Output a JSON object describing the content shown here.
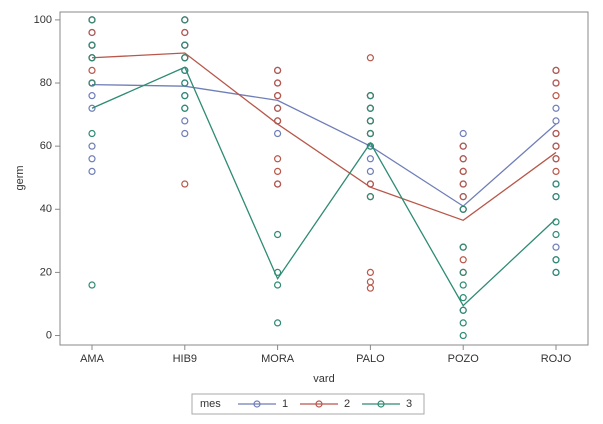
{
  "chart_data": {
    "type": "scatter-means",
    "x_label": "vard",
    "y_label": "germ",
    "categories": [
      "AMA",
      "HIB9",
      "MORA",
      "PALO",
      "POZO",
      "ROJO"
    ],
    "ylim": [
      -3,
      102.5
    ],
    "yticks": [
      0,
      20,
      40,
      60,
      80,
      100
    ],
    "legend_title": "mes",
    "legend": "bottom",
    "series": [
      {
        "name": "1",
        "color": "#6f7eb8",
        "values": [
          79.5,
          79,
          74.5,
          60,
          41,
          67
        ],
        "points": [
          [
            100,
            96,
            92,
            88,
            80,
            76,
            72,
            60,
            56,
            52
          ],
          [
            100,
            96,
            92,
            88,
            84,
            80,
            76,
            72,
            68,
            64
          ],
          [
            84,
            80,
            76,
            72,
            68,
            64,
            48
          ],
          [
            76,
            72,
            68,
            64,
            60,
            56,
            52,
            48
          ],
          [
            64,
            60,
            56,
            52,
            48,
            44,
            40,
            8
          ],
          [
            84,
            80,
            72,
            68,
            64,
            60,
            56,
            48,
            44,
            28,
            24,
            20
          ]
        ]
      },
      {
        "name": "2",
        "color": "#b8574a",
        "values": [
          88,
          89.5,
          67,
          47,
          36.5,
          58
        ],
        "points": [
          [
            100,
            96,
            92,
            88,
            84,
            80
          ],
          [
            100,
            96,
            92,
            88,
            48
          ],
          [
            84,
            80,
            76,
            72,
            68,
            56,
            52,
            48
          ],
          [
            88,
            76,
            72,
            68,
            64,
            48,
            44,
            20,
            17,
            15
          ],
          [
            60,
            56,
            52,
            48,
            44,
            40,
            28,
            24,
            20
          ],
          [
            84,
            80,
            76,
            64,
            60,
            56,
            52
          ]
        ]
      },
      {
        "name": "3",
        "color": "#2e8b74",
        "values": [
          72,
          85,
          18,
          61,
          9.5,
          37
        ],
        "points": [
          [
            100,
            92,
            88,
            80,
            64,
            16
          ],
          [
            100,
            92,
            88,
            84,
            80,
            76,
            72
          ],
          [
            32,
            20,
            16,
            4
          ],
          [
            76,
            72,
            68,
            64,
            60,
            44
          ],
          [
            40,
            28,
            20,
            16,
            12,
            8,
            4,
            0
          ],
          [
            48,
            44,
            36,
            32,
            24,
            20
          ]
        ]
      }
    ]
  }
}
